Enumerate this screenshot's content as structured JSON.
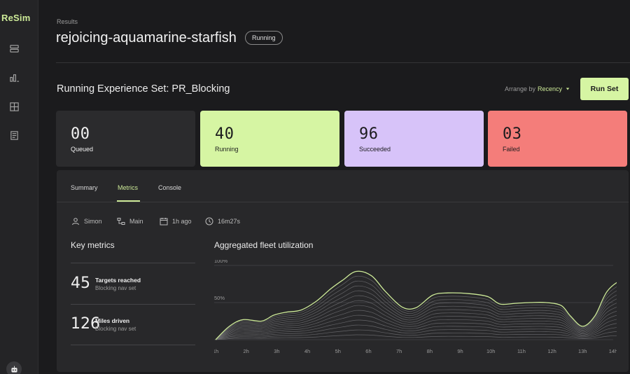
{
  "app": {
    "logo": "ReSim"
  },
  "sidebar": {
    "items": [
      {
        "icon": "layers-icon"
      },
      {
        "icon": "bar-chart-icon"
      },
      {
        "icon": "grid-icon"
      },
      {
        "icon": "document-icon"
      }
    ],
    "bottom_icon": "robot-icon"
  },
  "header": {
    "breadcrumb": "Results",
    "title": "rejoicing-aquamarine-starfish",
    "status": "Running"
  },
  "toolbar": {
    "set_title": "Running Experience Set: PR_Blocking",
    "arrange_label": "Arrange by",
    "arrange_value": "Recency",
    "run_label": "Run Set"
  },
  "stats": [
    {
      "value": "00",
      "label": "Queued",
      "bg": "#2b2b2d",
      "fg": "#f2f2f2"
    },
    {
      "value": "40",
      "label": "Running",
      "bg": "#d6f5a3",
      "fg": "#1b1b1d"
    },
    {
      "value": "96",
      "label": "Succeeded",
      "bg": "#d7c3f9",
      "fg": "#1b1b1d"
    },
    {
      "value": "03",
      "label": "Failed",
      "bg": "#f47d7a",
      "fg": "#1b1b1d"
    }
  ],
  "tabs": [
    {
      "label": "Summary",
      "active": false
    },
    {
      "label": "Metrics",
      "active": true
    },
    {
      "label": "Console",
      "active": false
    }
  ],
  "meta": {
    "user": "Simon",
    "branch": "Main",
    "time": "1h ago",
    "duration": "16m27s"
  },
  "key_metrics": {
    "title": "Key metrics",
    "items": [
      {
        "value": "45",
        "label": "Targets reached",
        "sub": "Blocking nav set"
      },
      {
        "value": "126",
        "label": "Miles driven",
        "sub": "Blocking nav set"
      }
    ]
  },
  "chart_data": {
    "type": "area",
    "title": "Aggregated fleet utilization",
    "x": [
      "1h",
      "2h",
      "3h",
      "4h",
      "5h",
      "6h",
      "7h",
      "8h",
      "9h",
      "10h",
      "11h",
      "12h",
      "13h",
      "14h"
    ],
    "y_ticks": [
      "100%",
      "50%"
    ],
    "ylim": [
      0,
      100
    ],
    "grid": true,
    "accent": "#cdea98",
    "layers": 14,
    "peak_profile": [
      [
        0,
        0
      ],
      [
        0.45,
        18
      ],
      [
        0.9,
        27
      ],
      [
        1.5,
        25
      ],
      [
        1.9,
        33
      ],
      [
        2.3,
        37
      ],
      [
        2.8,
        40
      ],
      [
        3.3,
        52
      ],
      [
        3.75,
        68
      ],
      [
        4.15,
        80
      ],
      [
        4.6,
        92
      ],
      [
        5.1,
        86
      ],
      [
        5.55,
        65
      ],
      [
        6.1,
        44
      ],
      [
        6.55,
        43
      ],
      [
        7.1,
        60
      ],
      [
        7.6,
        63
      ],
      [
        8.3,
        62
      ],
      [
        8.9,
        58
      ],
      [
        9.3,
        48
      ],
      [
        9.8,
        49
      ],
      [
        10.3,
        50
      ],
      [
        10.8,
        50
      ],
      [
        11.3,
        46
      ],
      [
        11.6,
        32
      ],
      [
        12.0,
        18
      ],
      [
        12.4,
        32
      ],
      [
        12.8,
        65
      ],
      [
        13.3,
        81
      ],
      [
        13.75,
        83
      ]
    ]
  }
}
